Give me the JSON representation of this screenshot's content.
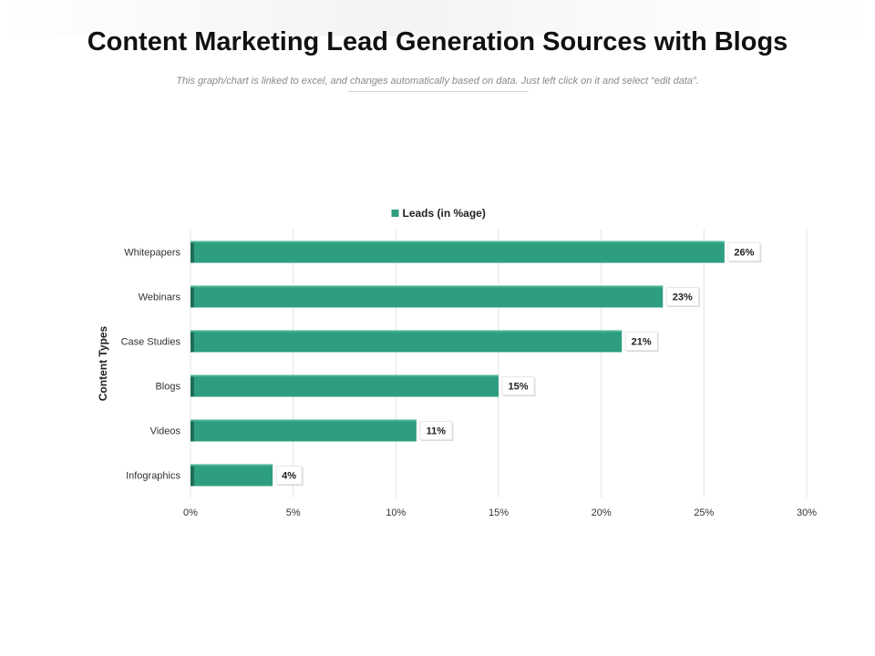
{
  "page": {
    "title": "Content Marketing Lead Generation Sources with Blogs",
    "subtitle": "This graph/chart is linked to excel, and changes automatically based on data. Just left click on it and select “edit data”."
  },
  "chart_data": {
    "type": "bar",
    "orientation": "horizontal",
    "categories": [
      "Whitepapers",
      "Webinars",
      "Case Studies",
      "Blogs",
      "Videos",
      "Infographics"
    ],
    "series": [
      {
        "name": "Leads (in %age)",
        "values": [
          26,
          23,
          21,
          15,
          11,
          4
        ]
      }
    ],
    "data_labels": [
      "26%",
      "23%",
      "21%",
      "15%",
      "11%",
      "4%"
    ],
    "xlabel": "",
    "ylabel": "Content Types",
    "xlim": [
      0,
      30
    ],
    "x_ticks": [
      0,
      5,
      10,
      15,
      20,
      25,
      30
    ],
    "x_tick_labels": [
      "0%",
      "5%",
      "10%",
      "15%",
      "20%",
      "25%",
      "30%"
    ],
    "grid": "vertical",
    "legend": "top-center",
    "bar_color": "#2e9e80"
  }
}
